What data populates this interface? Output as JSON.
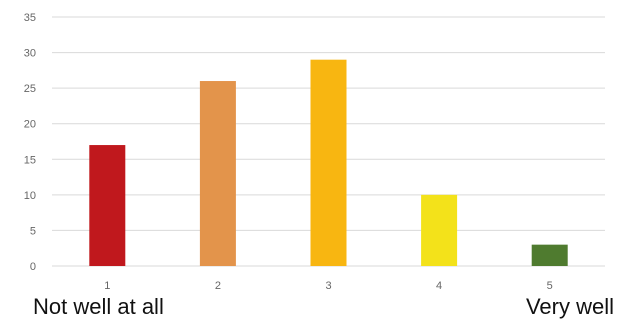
{
  "chart_data": {
    "type": "bar",
    "categories": [
      "1",
      "2",
      "3",
      "4",
      "5"
    ],
    "values": [
      17,
      26,
      29,
      10,
      3
    ],
    "colors": [
      "#c0181d",
      "#e3944b",
      "#f8b611",
      "#f3e21a",
      "#4f7b2f"
    ],
    "title": "",
    "xlabel": "",
    "ylabel": "",
    "ylim": [
      0,
      35
    ],
    "yticks": [
      0,
      5,
      10,
      15,
      20,
      25,
      30,
      35
    ],
    "grid": true,
    "grid_color": "#d9d9d9",
    "scale_end_labels": {
      "low": "Not well at all",
      "high": "Very well"
    }
  }
}
